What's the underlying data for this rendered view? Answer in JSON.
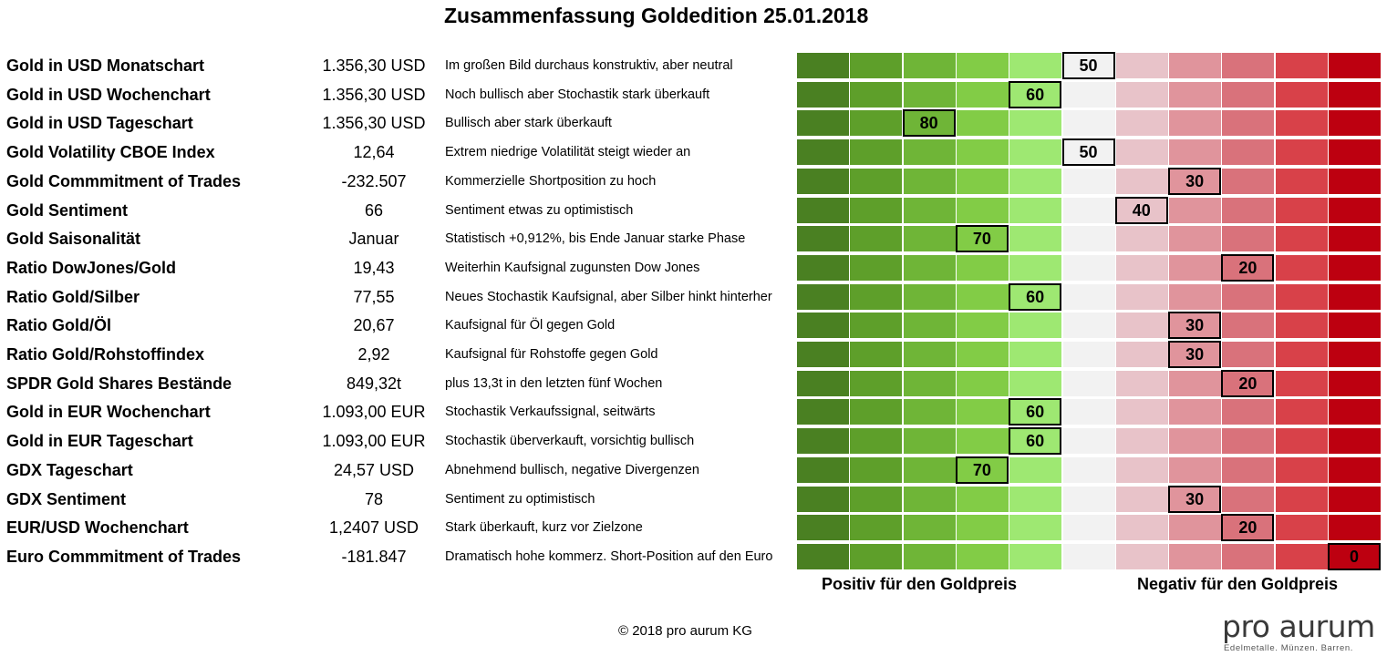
{
  "title": "Zusammenfassung Goldedition 25.01.2018",
  "chart_data": {
    "type": "table",
    "scale": [
      100,
      90,
      80,
      70,
      60,
      50,
      40,
      30,
      20,
      10,
      0
    ],
    "scale_colors": [
      "#4a8022",
      "#5e9f2a",
      "#6fb537",
      "#82cc46",
      "#9ee872",
      "#f2f2f2",
      "#e8c3c9",
      "#e0949c",
      "#d9727b",
      "#d84149",
      "#bd0010"
    ],
    "positive_label": "Positiv für den Goldpreis",
    "negative_label": "Negativ für den Goldpreis",
    "rows": [
      {
        "label": "Gold in USD Monatschart",
        "value": "1.356,30 USD",
        "comment": "Im großen Bild durchaus konstruktiv,  aber neutral",
        "score": 50
      },
      {
        "label": "Gold in USD Wochenchart",
        "value": "1.356,30 USD",
        "comment": "Noch bullisch aber Stochastik stark überkauft",
        "score": 60
      },
      {
        "label": "Gold in USD Tageschart",
        "value": "1.356,30 USD",
        "comment": "Bullisch aber stark überkauft",
        "score": 80
      },
      {
        "label": "Gold Volatility CBOE Index",
        "value": "12,64",
        "comment": "Extrem niedrige Volatilität steigt wieder an",
        "score": 50
      },
      {
        "label": "Gold Commmitment of Trades",
        "value": "-232.507",
        "comment": "Kommerzielle Shortposition zu hoch",
        "score": 30
      },
      {
        "label": "Gold Sentiment",
        "value": "66",
        "comment": "Sentiment etwas zu optimistisch",
        "score": 40
      },
      {
        "label": "Gold Saisonalität",
        "value": "Januar",
        "comment": "Statistisch +0,912%, bis Ende Januar starke Phase",
        "score": 70
      },
      {
        "label": "Ratio DowJones/Gold",
        "value": "19,43",
        "comment": "Weiterhin Kaufsignal zugunsten Dow Jones",
        "score": 20
      },
      {
        "label": "Ratio Gold/Silber",
        "value": "77,55",
        "comment": "Neues Stochastik Kaufsignal, aber Silber hinkt hinterher",
        "score": 60
      },
      {
        "label": "Ratio Gold/Öl",
        "value": "20,67",
        "comment": "Kaufsignal für Öl gegen Gold",
        "score": 30
      },
      {
        "label": "Ratio Gold/Rohstoffindex",
        "value": "2,92",
        "comment": "Kaufsignal für Rohstoffe gegen Gold",
        "score": 30
      },
      {
        "label": "SPDR Gold Shares Bestände",
        "value": "849,32t",
        "comment": "plus 13,3t in den letzten fünf Wochen",
        "score": 20
      },
      {
        "label": "Gold in EUR Wochenchart",
        "value": "1.093,00 EUR",
        "comment": "Stochastik Verkaufssignal, seitwärts",
        "score": 60
      },
      {
        "label": "Gold in EUR Tageschart",
        "value": "1.093,00 EUR",
        "comment": "Stochastik überverkauft, vorsichtig bullisch",
        "score": 60
      },
      {
        "label": "GDX Tageschart",
        "value": "24,57 USD",
        "comment": "Abnehmend bullisch, negative Divergenzen",
        "score": 70
      },
      {
        "label": "GDX Sentiment",
        "value": "78",
        "comment": "Sentiment zu optimistisch",
        "score": 30
      },
      {
        "label": "EUR/USD Wochenchart",
        "value": "1,2407 USD",
        "comment": "Stark überkauft, kurz vor Zielzone",
        "score": 20
      },
      {
        "label": "Euro Commmitment of Trades",
        "value": "-181.847",
        "comment": "Dramatisch hohe kommerz. Short-Position auf den Euro",
        "score": 0
      }
    ]
  },
  "footer": {
    "copyright": "© 2018 pro aurum KG"
  },
  "logo": {
    "name": "pro aurum",
    "tagline": "Edelmetalle. Münzen. Barren."
  }
}
